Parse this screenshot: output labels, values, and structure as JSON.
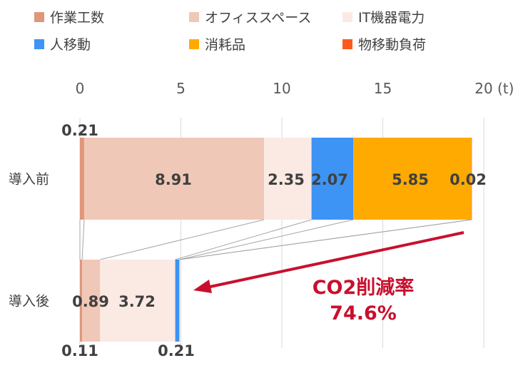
{
  "chart_data": {
    "type": "bar",
    "orientation": "horizontal",
    "stacked": true,
    "categories": [
      "導入前",
      "導入後"
    ],
    "series": [
      {
        "name": "作業工数",
        "color": "#E0967A",
        "values": [
          0.21,
          0.11
        ]
      },
      {
        "name": "オフィススペース",
        "color": "#F0C8B8",
        "values": [
          8.91,
          0.89
        ]
      },
      {
        "name": "IT機器電力",
        "color": "#FBEAE3",
        "values": [
          2.35,
          3.72
        ]
      },
      {
        "name": "人移動",
        "color": "#3D94F5",
        "values": [
          2.07,
          0.21
        ]
      },
      {
        "name": "消耗品",
        "color": "#FFAA00",
        "values": [
          5.85,
          0
        ]
      },
      {
        "name": "物移動負荷",
        "color": "#FF5A1E",
        "values": [
          0.02,
          0
        ]
      }
    ],
    "data_labels": {
      "導入前": [
        "0.21",
        "8.91",
        "2.35",
        "2.07",
        "5.85",
        "0.02"
      ],
      "導入後": [
        "0.11",
        "0.89",
        "3.72",
        "0.21"
      ]
    },
    "xlim": [
      0,
      20
    ],
    "x_ticks": [
      "0",
      "5",
      "10",
      "15",
      "20"
    ],
    "x_unit": "(t)",
    "grid": true,
    "legend_position": "top",
    "annotation": {
      "line1": "CO2削減率",
      "line2": "74.6%",
      "color": "#C8102E"
    }
  }
}
